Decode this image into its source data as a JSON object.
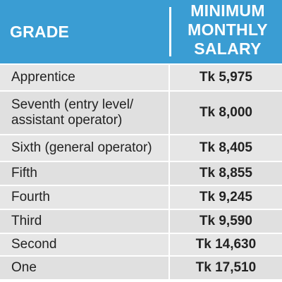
{
  "table": {
    "header": {
      "grade": "GRADE",
      "salary_lines": [
        "MINIMUM",
        "MONTHLY",
        "SALARY"
      ]
    },
    "rows": [
      {
        "grade": "Apprentice",
        "salary": "Tk 5,975"
      },
      {
        "grade": "Seventh (entry level/ assistant operator)",
        "salary": "Tk 8,000"
      },
      {
        "grade": "Sixth (general operator)",
        "salary": "Tk 8,405"
      },
      {
        "grade": "Fifth",
        "salary": "Tk 8,855"
      },
      {
        "grade": "Fourth",
        "salary": "Tk 9,245"
      },
      {
        "grade": "Third",
        "salary": "Tk 9,590"
      },
      {
        "grade": "Second",
        "salary": "Tk 14,630"
      },
      {
        "grade": "One",
        "salary": "Tk 17,510"
      }
    ]
  },
  "colors": {
    "header_bg": "#3a9dd3",
    "row_bg": "#e6e6e6",
    "text": "#222222"
  }
}
